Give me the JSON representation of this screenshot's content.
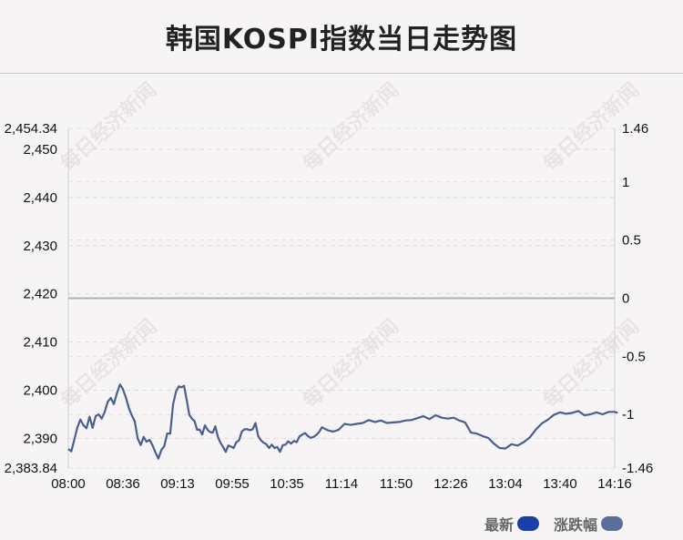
{
  "title": "韩国KOSPI指数当日走势图",
  "watermark": "每日经济新闻",
  "legend": [
    {
      "label": "最新",
      "color": "#1a3fa8"
    },
    {
      "label": "涨跌幅",
      "color": "#5a6e9a"
    }
  ],
  "chart_data": {
    "type": "line",
    "title": "韩国KOSPI指数当日走势图",
    "x_ticks": [
      "08:00",
      "08:36",
      "09:13",
      "09:55",
      "10:35",
      "11:14",
      "11:50",
      "12:26",
      "13:04",
      "13:40",
      "14:16"
    ],
    "y_left_ticks": [
      "2,454.34",
      "2,450",
      "2,440",
      "2,430",
      "2,420",
      "2,410",
      "2,400",
      "2,390",
      "2,383.84"
    ],
    "y_right_ticks": [
      "1.46",
      "1",
      "0.5",
      "0",
      "-0.5",
      "-1",
      "-1.46"
    ],
    "ylim_left": [
      2383.84,
      2454.34
    ],
    "ylim_right": [
      -1.46,
      1.46
    ],
    "baseline": 2419.1,
    "grid": true,
    "legend_position": "bottom-right",
    "series": [
      {
        "name": "最新",
        "color": "#4a5f8f",
        "x": [
          "08:00",
          "08:02",
          "08:04",
          "08:06",
          "08:08",
          "08:10",
          "08:12",
          "08:14",
          "08:16",
          "08:18",
          "08:20",
          "08:22",
          "08:24",
          "08:26",
          "08:28",
          "08:30",
          "08:32",
          "08:34",
          "08:36",
          "08:38",
          "08:40",
          "08:42",
          "08:44",
          "08:46",
          "08:48",
          "08:50",
          "08:52",
          "08:54",
          "08:56",
          "08:58",
          "09:00",
          "09:02",
          "09:04",
          "09:06",
          "09:08",
          "09:10",
          "09:12",
          "09:14",
          "09:16",
          "09:18",
          "09:20",
          "09:22",
          "09:24",
          "09:26",
          "09:28",
          "09:30",
          "09:32",
          "09:34",
          "09:36",
          "09:38",
          "09:40",
          "09:42",
          "09:44",
          "09:46",
          "09:48",
          "09:50",
          "09:52",
          "09:54",
          "09:56",
          "09:58",
          "10:00",
          "10:02",
          "10:04",
          "10:06",
          "10:08",
          "10:10",
          "10:12",
          "10:14",
          "10:16",
          "10:18",
          "10:20",
          "10:22",
          "10:24",
          "10:26",
          "10:28",
          "10:30",
          "10:32",
          "10:34",
          "10:36",
          "10:38",
          "10:40",
          "10:42",
          "10:44",
          "10:46",
          "10:48",
          "10:50",
          "10:52",
          "10:54",
          "10:56",
          "10:58",
          "11:00",
          "11:04",
          "11:08",
          "11:12",
          "11:16",
          "11:20",
          "11:24",
          "11:28",
          "11:32",
          "11:36",
          "11:40",
          "11:44",
          "11:48",
          "11:52",
          "11:56",
          "12:00",
          "12:04",
          "12:08",
          "12:12",
          "12:16",
          "12:20",
          "12:24",
          "12:28",
          "12:32",
          "12:36",
          "12:40",
          "12:44",
          "12:48",
          "12:52",
          "12:56",
          "13:00",
          "13:04",
          "13:08",
          "13:12",
          "13:16",
          "13:20",
          "13:24",
          "13:28",
          "13:32",
          "13:36",
          "13:40",
          "13:44",
          "13:48",
          "13:52",
          "13:56",
          "14:00",
          "14:04",
          "14:08",
          "14:12",
          "14:16",
          "14:18"
        ],
        "values": [
          2387.8,
          2387.3,
          2389.8,
          2392.3,
          2393.9,
          2392.7,
          2392.1,
          2394.5,
          2392.2,
          2394.6,
          2395.0,
          2394.1,
          2395.5,
          2397.6,
          2398.4,
          2397.1,
          2399.3,
          2401.2,
          2400.2,
          2398.5,
          2396.3,
          2394.8,
          2393.5,
          2390.0,
          2388.6,
          2390.3,
          2389.3,
          2389.7,
          2388.6,
          2387.1,
          2385.8,
          2387.6,
          2388.4,
          2391.0,
          2391.0,
          2397.1,
          2399.8,
          2400.8,
          2400.6,
          2400.9,
          2398.0,
          2394.9,
          2394.1,
          2393.6,
          2391.8,
          2391.8,
          2390.8,
          2392.7,
          2391.8,
          2391.3,
          2391.2,
          2392.5,
          2390.3,
          2389.1,
          2388.2,
          2387.2,
          2388.5,
          2388.3,
          2388.0,
          2389.2,
          2389.6,
          2391.4,
          2391.9,
          2391.9,
          2391.7,
          2391.9,
          2393.2,
          2390.5,
          2389.6,
          2389.1,
          2388.8,
          2388.0,
          2388.7,
          2388.0,
          2388.2,
          2387.2,
          2388.6,
          2388.7,
          2389.4,
          2388.9,
          2389.5,
          2389.2,
          2390.4,
          2390.8,
          2391.1,
          2390.5,
          2390.1,
          2390.3,
          2390.7,
          2391.3,
          2392.3,
          2391.7,
          2391.4,
          2391.8,
          2393.0,
          2392.8,
          2393.0,
          2393.2,
          2393.8,
          2393.4,
          2393.7,
          2393.2,
          2393.3,
          2393.4,
          2393.7,
          2393.8,
          2394.2,
          2394.6,
          2394.0,
          2394.8,
          2394.3,
          2394.1,
          2394.3,
          2393.7,
          2393.3,
          2391.2,
          2391.0,
          2390.5,
          2390.1,
          2388.9,
          2388.0,
          2387.9,
          2388.8,
          2388.5,
          2389.2,
          2390.2,
          2391.8,
          2393.1,
          2393.9,
          2394.9,
          2395.4,
          2395.1,
          2395.3,
          2395.7,
          2394.8,
          2395.0,
          2395.4,
          2395.0,
          2395.5,
          2395.5,
          2395.3
        ]
      }
    ]
  }
}
